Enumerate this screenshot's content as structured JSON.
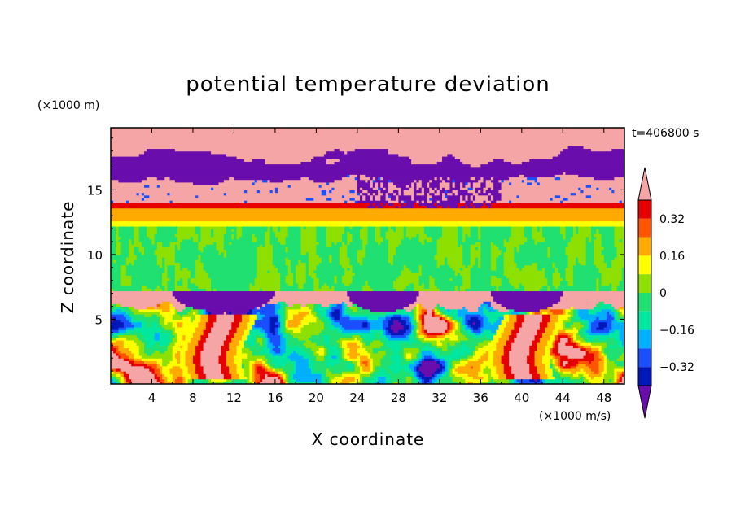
{
  "chart_data": {
    "type": "heatmap",
    "title": "potential temperature deviation",
    "xlabel": "X coordinate",
    "ylabel": "Z coordinate",
    "x_unit": "(×1000 m/s)",
    "y_unit": "(×1000 m)",
    "time_label": "t=406800 s",
    "xlim": [
      0,
      50
    ],
    "ylim": [
      0,
      19.8
    ],
    "xticks": [
      4,
      8,
      12,
      16,
      20,
      24,
      28,
      32,
      36,
      40,
      44,
      48
    ],
    "xtick_labels": [
      "4",
      "8",
      "12",
      "16",
      "20",
      "24",
      "28",
      "32",
      "36",
      "40",
      "44",
      "48"
    ],
    "yticks": [
      5,
      10,
      15
    ],
    "ytick_labels": [
      "5",
      "10",
      "15"
    ],
    "colorbar": {
      "levels": [
        -0.4,
        -0.32,
        -0.24,
        -0.16,
        -0.08,
        0,
        0.08,
        0.16,
        0.24,
        0.32,
        0.4
      ],
      "colors": [
        "#6a0dad",
        "#0018b8",
        "#1a4fff",
        "#00b0ff",
        "#00e8a0",
        "#1fe070",
        "#8ee000",
        "#ffff00",
        "#ffaa00",
        "#ff5500",
        "#e80000",
        "#f5a5a5"
      ],
      "tick_values": [
        0.32,
        0.16,
        0,
        -0.16,
        -0.32
      ],
      "tick_labels": [
        "0.32",
        "0.16",
        "0",
        "−0.16",
        "−0.32"
      ],
      "extend": "both"
    },
    "field_description": {
      "layers": [
        {
          "z": [
            17.6,
            19.8
          ],
          "value": 0.45
        },
        {
          "z": [
            15.8,
            17.6
          ],
          "value": -0.45
        },
        {
          "z": [
            13.9,
            15.8
          ],
          "value": 0.45
        },
        {
          "z": [
            13.5,
            13.9
          ],
          "value": 0.34
        },
        {
          "z": [
            12.6,
            13.5
          ],
          "value": 0.2
        },
        {
          "z": [
            12.2,
            12.6
          ],
          "value": 0.1
        },
        {
          "z": [
            7.2,
            12.2
          ],
          "value": 0.0
        },
        {
          "z": [
            6.0,
            7.2
          ],
          "value": 0.45
        }
      ],
      "domes": [
        {
          "x": [
            6,
            16
          ],
          "value": -0.45
        },
        {
          "x": [
            23,
            30
          ],
          "value": -0.45
        },
        {
          "x": [
            37,
            44
          ],
          "value": -0.45
        }
      ],
      "plumes": [
        {
          "x": 10.5,
          "value": 0.42
        },
        {
          "x": 40.5,
          "value": 0.42
        }
      ]
    }
  }
}
